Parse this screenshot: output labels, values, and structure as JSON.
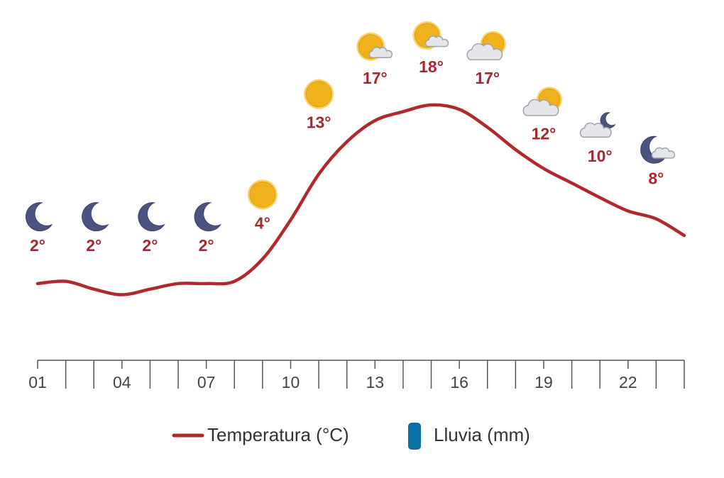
{
  "chart_data": {
    "type": "line",
    "x": [
      1,
      2,
      3,
      4,
      5,
      6,
      7,
      8,
      9,
      10,
      11,
      12,
      13,
      14,
      15,
      16,
      17,
      18,
      19,
      20,
      21,
      22,
      23,
      24
    ],
    "xlim": [
      1,
      24
    ],
    "ylim": [
      -5,
      22
    ],
    "xticks": [
      {
        "value": 1,
        "label": "01"
      },
      {
        "value": 4,
        "label": "04"
      },
      {
        "value": 7,
        "label": "07"
      },
      {
        "value": 10,
        "label": "10"
      },
      {
        "value": 13,
        "label": "13"
      },
      {
        "value": 16,
        "label": "16"
      },
      {
        "value": 19,
        "label": "19"
      },
      {
        "value": 22,
        "label": "22"
      }
    ],
    "xminor": [
      2,
      3,
      5,
      6,
      8,
      9,
      11,
      12,
      14,
      15,
      17,
      18,
      20,
      21,
      23,
      24
    ],
    "series": [
      {
        "name": "Temperatura (°C)",
        "color": "#b3282d",
        "values": [
          2,
          2.2,
          1.5,
          1,
          1.5,
          2,
          2,
          2.2,
          4.2,
          7.7,
          11.8,
          14.7,
          16.6,
          17.4,
          18,
          17.6,
          16,
          14,
          12.3,
          11,
          9.7,
          8.5,
          7.8,
          6.3
        ]
      },
      {
        "name": "Lluvia (mm)",
        "color": "#0b6ea5",
        "type": "bar",
        "values": [
          0,
          0,
          0,
          0,
          0,
          0,
          0,
          0,
          0,
          0,
          0,
          0,
          0,
          0,
          0,
          0,
          0,
          0,
          0,
          0,
          0,
          0,
          0,
          0
        ]
      }
    ],
    "forecast": {
      "x": [
        1,
        3,
        5,
        7,
        9,
        11,
        13,
        15,
        17,
        19,
        21,
        23
      ],
      "temps": [
        2,
        2,
        2,
        2,
        4,
        13,
        17,
        18,
        17,
        12,
        10,
        8
      ],
      "temp_labels": [
        "2°",
        "2°",
        "2°",
        "2°",
        "4°",
        "13°",
        "17°",
        "18°",
        "17°",
        "12°",
        "10°",
        "8°"
      ],
      "conditions": [
        "moon",
        "moon",
        "moon",
        "moon",
        "sun",
        "sun",
        "sun-cloud",
        "sun-cloud",
        "cloud-sun",
        "cloud-sun",
        "cloud-moon",
        "moon-cloud"
      ]
    }
  }
}
